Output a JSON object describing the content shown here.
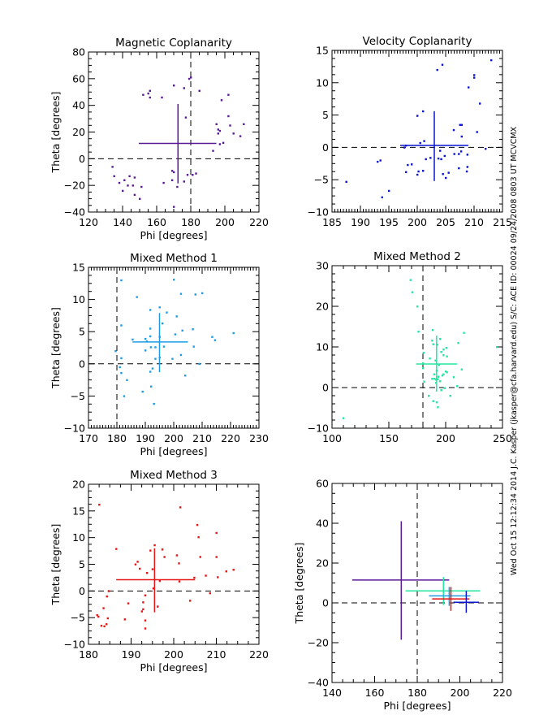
{
  "side_caption": "Wed Oct 15 12:12:34 2014   J.C. Kasper (jkasper@cfa.harvard.edu)   S/C: ACE ID: 00024 09/24/2008  0803 UT MCVCMX",
  "chart_data": [
    {
      "type": "scatter",
      "title": "Magnetic Coplanarity",
      "xlabel": "Phi [degrees]",
      "ylabel": "Theta [degrees]",
      "xlim": [
        120,
        220
      ],
      "ylim": [
        -40,
        80
      ],
      "xticks": [
        120,
        140,
        160,
        180,
        200,
        220
      ],
      "yticks": [
        -40,
        -20,
        0,
        20,
        40,
        60,
        80
      ],
      "color": "#5a1a96",
      "ref_x": 180,
      "ref_y": 0,
      "mean": {
        "x": 172.5,
        "y": 11.5,
        "x_range": [
          149.5,
          195
        ],
        "y_range": [
          -18.5,
          41
        ]
      },
      "points": [
        [
          134,
          -6
        ],
        [
          135,
          -13
        ],
        [
          138,
          -18
        ],
        [
          141,
          -16
        ],
        [
          140,
          -24
        ],
        [
          143,
          -20
        ],
        [
          144,
          -13
        ],
        [
          146,
          -20
        ],
        [
          147,
          -27
        ],
        [
          147,
          -14
        ],
        [
          150,
          -30
        ],
        [
          151,
          -21
        ],
        [
          152,
          48
        ],
        [
          155,
          49
        ],
        [
          156,
          51
        ],
        [
          156,
          46
        ],
        [
          163,
          46
        ],
        [
          164,
          -18
        ],
        [
          169,
          -9
        ],
        [
          169,
          -16
        ],
        [
          170,
          -10
        ],
        [
          170,
          55
        ],
        [
          170,
          -36
        ],
        [
          172,
          -21
        ],
        [
          176,
          53
        ],
        [
          176,
          -17
        ],
        [
          177,
          31
        ],
        [
          178,
          -12
        ],
        [
          179,
          60
        ],
        [
          180,
          61
        ],
        [
          181,
          -12
        ],
        [
          183,
          -11
        ],
        [
          185,
          51
        ],
        [
          193,
          6
        ],
        [
          195,
          26
        ],
        [
          196,
          22
        ],
        [
          196,
          19
        ],
        [
          197,
          21
        ],
        [
          197,
          11
        ],
        [
          198,
          44
        ],
        [
          199,
          12
        ],
        [
          202,
          48
        ],
        [
          202,
          32
        ],
        [
          203,
          25
        ],
        [
          205,
          19
        ],
        [
          209,
          17
        ],
        [
          211,
          26
        ]
      ]
    },
    {
      "type": "scatter",
      "title": "Velocity Coplanarity",
      "xlabel": "",
      "ylabel": "",
      "xlim": [
        185,
        215
      ],
      "ylim": [
        -10,
        15
      ],
      "xticks": [
        185,
        190,
        195,
        200,
        205,
        210,
        215
      ],
      "yticks": [
        -10,
        -5,
        0,
        5,
        10,
        15
      ],
      "color": "#0a14d2",
      "ref_x": null,
      "ref_y": 0,
      "mean": {
        "x": 203,
        "y": 0.3,
        "x_range": [
          197,
          209
        ],
        "y_range": [
          -5.2,
          5.6
        ]
      },
      "points": [
        [
          187.5,
          -5.3
        ],
        [
          193,
          -2.2
        ],
        [
          193.5,
          -2
        ],
        [
          193.8,
          -7.7
        ],
        [
          195,
          -6.7
        ],
        [
          197.7,
          0
        ],
        [
          198,
          0.3
        ],
        [
          198,
          -3.8
        ],
        [
          198.3,
          -2.7
        ],
        [
          199,
          -2.6
        ],
        [
          200,
          -4.2
        ],
        [
          200,
          4.9
        ],
        [
          200.2,
          -3.7
        ],
        [
          200.5,
          0.7
        ],
        [
          201,
          5.6
        ],
        [
          201,
          -3.6
        ],
        [
          201.2,
          1
        ],
        [
          201.5,
          -1.8
        ],
        [
          202.3,
          -1.6
        ],
        [
          203.5,
          12
        ],
        [
          203.7,
          -1.7
        ],
        [
          204,
          -0.5
        ],
        [
          204.2,
          -1.8
        ],
        [
          204.4,
          12.8
        ],
        [
          204.5,
          -4.1
        ],
        [
          204.8,
          -1.3
        ],
        [
          205,
          -4.7
        ],
        [
          205.5,
          -3.9
        ],
        [
          206.4,
          2.7
        ],
        [
          206.5,
          -1
        ],
        [
          207.3,
          -1
        ],
        [
          207.3,
          -3.2
        ],
        [
          207.5,
          3.5
        ],
        [
          207.8,
          3.5
        ],
        [
          207.8,
          1.7
        ],
        [
          207.7,
          -0.6
        ],
        [
          208.7,
          -3.7
        ],
        [
          208.8,
          -1.1
        ],
        [
          208.8,
          -3
        ],
        [
          209,
          9.3
        ],
        [
          210,
          10.8
        ],
        [
          210,
          11.2
        ],
        [
          210.5,
          2.4
        ],
        [
          211,
          6.8
        ],
        [
          212,
          -0.2
        ],
        [
          213,
          13.5
        ]
      ]
    },
    {
      "type": "scatter",
      "title": "Mixed Method 1",
      "xlabel": "Phi [degrees]",
      "ylabel": "Theta [degrees]",
      "xlim": [
        170,
        230
      ],
      "ylim": [
        -10,
        15
      ],
      "xticks": [
        170,
        180,
        190,
        200,
        210,
        220,
        230
      ],
      "yticks": [
        -10,
        -5,
        0,
        5,
        10,
        15
      ],
      "color": "#1e9be6",
      "ref_x": 180,
      "ref_y": 0,
      "mean": {
        "x": 195,
        "y": 3.4,
        "x_range": [
          185.5,
          205
        ],
        "y_range": [
          -1.3,
          7.9
        ]
      },
      "points": [
        [
          179.5,
          2
        ],
        [
          181,
          -0.5
        ],
        [
          181.5,
          13
        ],
        [
          181.5,
          6
        ],
        [
          181.5,
          0.9
        ],
        [
          181.5,
          -1.4
        ],
        [
          182.5,
          -5
        ],
        [
          183.5,
          -2.5
        ],
        [
          185.5,
          3.8
        ],
        [
          187,
          10.4
        ],
        [
          189,
          -4.3
        ],
        [
          190,
          3.9
        ],
        [
          190,
          2.1
        ],
        [
          190.5,
          3.5
        ],
        [
          191.7,
          8.4
        ],
        [
          191.7,
          5.5
        ],
        [
          191.7,
          4.3
        ],
        [
          191.7,
          -1.2
        ],
        [
          191.9,
          2.6
        ],
        [
          192,
          -3.5
        ],
        [
          192.5,
          -0.7
        ],
        [
          193,
          -6.2
        ],
        [
          193.5,
          0.8
        ],
        [
          193.5,
          2.6
        ],
        [
          195,
          8.8
        ],
        [
          195,
          4.2
        ],
        [
          195,
          1
        ],
        [
          196,
          6.3
        ],
        [
          196.5,
          2.7
        ],
        [
          197.5,
          8
        ],
        [
          199.5,
          0.8
        ],
        [
          200,
          13.1
        ],
        [
          200.5,
          4.6
        ],
        [
          201,
          7.4
        ],
        [
          202.5,
          10.9
        ],
        [
          202.5,
          1.4
        ],
        [
          203,
          5.2
        ],
        [
          204,
          -1.8
        ],
        [
          206.7,
          5.4
        ],
        [
          207,
          2.7
        ],
        [
          207.6,
          10.8
        ],
        [
          209,
          0
        ],
        [
          210,
          11
        ],
        [
          213.5,
          4.2
        ],
        [
          214.5,
          3.7
        ],
        [
          221,
          4.8
        ]
      ]
    },
    {
      "type": "scatter",
      "title": "Mixed Method 2",
      "xlabel": "",
      "ylabel": "",
      "xlim": [
        100,
        250
      ],
      "ylim": [
        -10,
        30
      ],
      "xticks": [
        100,
        150,
        200,
        250
      ],
      "yticks": [
        -10,
        0,
        10,
        20,
        30
      ],
      "color": "#25e6a0",
      "ref_x": 180,
      "ref_y": 0,
      "mean": {
        "x": 192,
        "y": 5.8,
        "x_range": [
          174,
          210
        ],
        "y_range": [
          -1,
          12.8
        ]
      },
      "points": [
        [
          110,
          -7.5
        ],
        [
          169,
          26.5
        ],
        [
          170.5,
          23.5
        ],
        [
          175,
          20
        ],
        [
          176,
          13.8
        ],
        [
          180,
          6
        ],
        [
          180,
          4.8
        ],
        [
          180.5,
          8.6
        ],
        [
          181,
          1.5
        ],
        [
          185,
          -2
        ],
        [
          186,
          7.2
        ],
        [
          188,
          11.6
        ],
        [
          188,
          2.2
        ],
        [
          188.5,
          14.2
        ],
        [
          189,
          10.7
        ],
        [
          189,
          -3.3
        ],
        [
          190,
          3.3
        ],
        [
          190,
          2.2
        ],
        [
          191,
          6.7
        ],
        [
          191.5,
          2
        ],
        [
          191.5,
          1.2
        ],
        [
          192,
          -3.6
        ],
        [
          192,
          4.2
        ],
        [
          192.5,
          10.6
        ],
        [
          193,
          2.1
        ],
        [
          193,
          -4.8
        ],
        [
          193.5,
          2.7
        ],
        [
          194,
          5.6
        ],
        [
          195,
          12
        ],
        [
          195,
          1.6
        ],
        [
          196,
          8.8
        ],
        [
          196,
          -0.6
        ],
        [
          197,
          3
        ],
        [
          198,
          9.4
        ],
        [
          198,
          8
        ],
        [
          198,
          3.3
        ],
        [
          199,
          -0.1
        ],
        [
          200,
          4
        ],
        [
          200.5,
          9.8
        ],
        [
          201,
          7.7
        ],
        [
          201,
          3.8
        ],
        [
          204,
          -2
        ],
        [
          207,
          2.6
        ],
        [
          210,
          0.4
        ],
        [
          211,
          11
        ],
        [
          214,
          4.5
        ],
        [
          216,
          13.5
        ],
        [
          245,
          10
        ]
      ]
    },
    {
      "type": "scatter",
      "title": "Mixed Method 3",
      "xlabel": "Phi [degrees]",
      "ylabel": "Theta [degrees]",
      "xlim": [
        180,
        220
      ],
      "ylim": [
        -10,
        20
      ],
      "xticks": [
        180,
        190,
        200,
        210,
        220
      ],
      "yticks": [
        -10,
        -5,
        0,
        5,
        10,
        15,
        20
      ],
      "color": "#e61414",
      "ref_x": null,
      "ref_y": 0,
      "mean": {
        "x": 195.5,
        "y": 2.1,
        "x_range": [
          186.5,
          205
        ],
        "y_range": [
          -4,
          8
        ]
      },
      "points": [
        [
          182,
          -4.5
        ],
        [
          182.3,
          -4.8
        ],
        [
          182.5,
          16.2
        ],
        [
          183,
          -6.5
        ],
        [
          183.5,
          -3.2
        ],
        [
          183.7,
          -6.6
        ],
        [
          184.2,
          -6.2
        ],
        [
          184.3,
          -1
        ],
        [
          184.5,
          -5.1
        ],
        [
          184.7,
          0
        ],
        [
          186.5,
          7.9
        ],
        [
          188.5,
          -5.3
        ],
        [
          189.3,
          -2.3
        ],
        [
          191,
          5
        ],
        [
          191.5,
          5.5
        ],
        [
          192,
          4.2
        ],
        [
          192.5,
          -3.8
        ],
        [
          192.8,
          -2.1
        ],
        [
          192.8,
          -3.4
        ],
        [
          193.3,
          -0.8
        ],
        [
          193.3,
          -5.5
        ],
        [
          193.3,
          -7
        ],
        [
          193.7,
          3.4
        ],
        [
          194.5,
          7.6
        ],
        [
          195,
          4.1
        ],
        [
          195.2,
          0.5
        ],
        [
          195.5,
          8.6
        ],
        [
          196.2,
          -2.9
        ],
        [
          196.7,
          1.9
        ],
        [
          197.3,
          7.8
        ],
        [
          197.8,
          6.4
        ],
        [
          200.7,
          6.7
        ],
        [
          201.2,
          5.2
        ],
        [
          201.3,
          1.8
        ],
        [
          201.5,
          15.7
        ],
        [
          203.8,
          -1.8
        ],
        [
          204.8,
          2.5
        ],
        [
          205.5,
          12.4
        ],
        [
          205.8,
          10.1
        ],
        [
          206.2,
          6.4
        ],
        [
          207.5,
          2.9
        ],
        [
          208.5,
          -0.4
        ],
        [
          210,
          10.9
        ],
        [
          210,
          6.4
        ],
        [
          210.3,
          2.6
        ],
        [
          212.3,
          3.7
        ],
        [
          214,
          4
        ]
      ]
    },
    {
      "type": "scatter",
      "title": "",
      "xlabel": "Phi [degrees]",
      "ylabel": "Theta [degrees]",
      "xlim": [
        140,
        220
      ],
      "ylim": [
        -40,
        60
      ],
      "xticks": [
        140,
        160,
        180,
        200,
        220
      ],
      "yticks": [
        -40,
        -20,
        0,
        20,
        40,
        60
      ],
      "color": "#000000",
      "ref_x": 180,
      "ref_y": 0,
      "crosses": [
        {
          "color": "#5a1a96",
          "x": 172.5,
          "y": 11.5,
          "x_range": [
            149.5,
            195
          ],
          "y_range": [
            -18.5,
            41
          ]
        },
        {
          "color": "#25e6a0",
          "x": 192.3,
          "y": 6,
          "x_range": [
            174.5,
            209.5
          ],
          "y_range": [
            -1,
            13
          ]
        },
        {
          "color": "#1e9be6",
          "x": 195,
          "y": 3.5,
          "x_range": [
            185.5,
            205
          ],
          "y_range": [
            -1.5,
            8
          ]
        },
        {
          "color": "#e61414",
          "x": 195.8,
          "y": 2,
          "x_range": [
            187,
            204.5
          ],
          "y_range": [
            -4,
            8
          ]
        },
        {
          "color": "#0a14d2",
          "x": 203,
          "y": 0.3,
          "x_range": [
            197,
            209
          ],
          "y_range": [
            -5,
            6
          ]
        }
      ],
      "points": []
    }
  ]
}
